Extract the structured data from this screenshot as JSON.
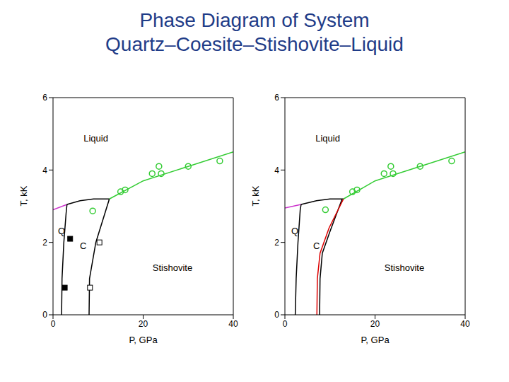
{
  "title": [
    "Phase Diagram of System",
    "Quartz–Coesite–Stishovite–Liquid"
  ],
  "chart_data": [
    {
      "type": "line",
      "xlabel": "P, GPa",
      "ylabel": "T, kK",
      "xlim": [
        0,
        40
      ],
      "ylim": [
        0,
        6
      ],
      "xticks": [
        0,
        20,
        40
      ],
      "yticks": [
        0,
        2,
        4,
        6
      ],
      "series": [
        {
          "type": "line",
          "color": "#cc33cc",
          "x": [
            0,
            3.1
          ],
          "values": [
            2.9,
            3.05
          ]
        },
        {
          "type": "line",
          "color": "#000000",
          "x": [
            1.9,
            2.0,
            2.4,
            2.9,
            3.1
          ],
          "values": [
            0,
            1,
            2,
            2.8,
            3.05
          ]
        },
        {
          "type": "line",
          "color": "#000000",
          "x": [
            3.1,
            6,
            9,
            12.5
          ],
          "values": [
            3.05,
            3.15,
            3.2,
            3.2
          ]
        },
        {
          "type": "line",
          "color": "#000000",
          "x": [
            8.0,
            8.1,
            9.5,
            11.5,
            12.5
          ],
          "values": [
            0,
            1,
            2,
            2.8,
            3.2
          ]
        },
        {
          "type": "line",
          "color": "#33cc33",
          "x": [
            12.5,
            20,
            30,
            40
          ],
          "values": [
            3.2,
            3.7,
            4.1,
            4.5
          ]
        },
        {
          "type": "scatter",
          "marker": "open_circle",
          "color": "#33cc33",
          "x": [
            8.8,
            15,
            16,
            22,
            23.5,
            24,
            30,
            37
          ],
          "values": [
            2.87,
            3.4,
            3.45,
            3.9,
            4.1,
            3.9,
            4.1,
            4.25
          ]
        },
        {
          "type": "scatter",
          "marker": "filled_square",
          "color": "#000000",
          "x": [
            3.8,
            2.6
          ],
          "values": [
            2.1,
            0.75
          ]
        },
        {
          "type": "scatter",
          "marker": "open_square",
          "color": "#000000",
          "x": [
            10.3,
            8.2
          ],
          "values": [
            2.0,
            0.75
          ]
        }
      ],
      "annotations": [
        {
          "text": "Liquid",
          "x": 9.5,
          "y": 4.87
        },
        {
          "text": "Q",
          "x": 1.9,
          "y": 2.32
        },
        {
          "text": "C",
          "x": 6.7,
          "y": 1.9
        },
        {
          "text": "Stishovite",
          "x": 26.5,
          "y": 1.3
        }
      ]
    },
    {
      "type": "line",
      "xlabel": "P, GPa",
      "ylabel": "T, kK",
      "xlim": [
        0,
        40
      ],
      "ylim": [
        0,
        6
      ],
      "xticks": [
        0,
        20,
        40
      ],
      "yticks": [
        0,
        2,
        4,
        6
      ],
      "series": [
        {
          "type": "line",
          "color": "#cc33cc",
          "x": [
            0,
            3.6
          ],
          "values": [
            2.95,
            3.05
          ]
        },
        {
          "type": "line",
          "color": "#000000",
          "x": [
            2.3,
            2.5,
            2.9,
            3.4,
            3.6
          ],
          "values": [
            0,
            1,
            2,
            2.9,
            3.05
          ]
        },
        {
          "type": "line",
          "color": "#000000",
          "x": [
            3.6,
            7,
            10,
            13
          ],
          "values": [
            3.05,
            3.15,
            3.2,
            3.2
          ]
        },
        {
          "type": "line",
          "color": "#000000",
          "x": [
            7.7,
            7.8,
            8.3,
            10,
            12.7
          ],
          "values": [
            0,
            1,
            1.7,
            2.3,
            3.2
          ]
        },
        {
          "type": "line",
          "color": "#dd0000",
          "x": [
            7.1,
            7.2,
            7.8,
            9.8,
            13.0
          ],
          "values": [
            0,
            1,
            1.7,
            2.4,
            3.2
          ]
        },
        {
          "type": "line",
          "color": "#33cc33",
          "x": [
            13,
            20,
            30,
            40
          ],
          "values": [
            3.2,
            3.7,
            4.1,
            4.5
          ]
        },
        {
          "type": "scatter",
          "marker": "open_circle",
          "color": "#33cc33",
          "x": [
            9.0,
            15,
            16,
            22,
            23.5,
            24,
            30,
            37
          ],
          "values": [
            2.9,
            3.4,
            3.45,
            3.9,
            4.1,
            3.9,
            4.1,
            4.25
          ]
        }
      ],
      "annotations": [
        {
          "text": "Liquid",
          "x": 9.5,
          "y": 4.87
        },
        {
          "text": "Q",
          "x": 2.2,
          "y": 2.32
        },
        {
          "text": "C",
          "x": 7.0,
          "y": 1.9
        },
        {
          "text": "Stishovite",
          "x": 26.5,
          "y": 1.3
        }
      ]
    }
  ]
}
